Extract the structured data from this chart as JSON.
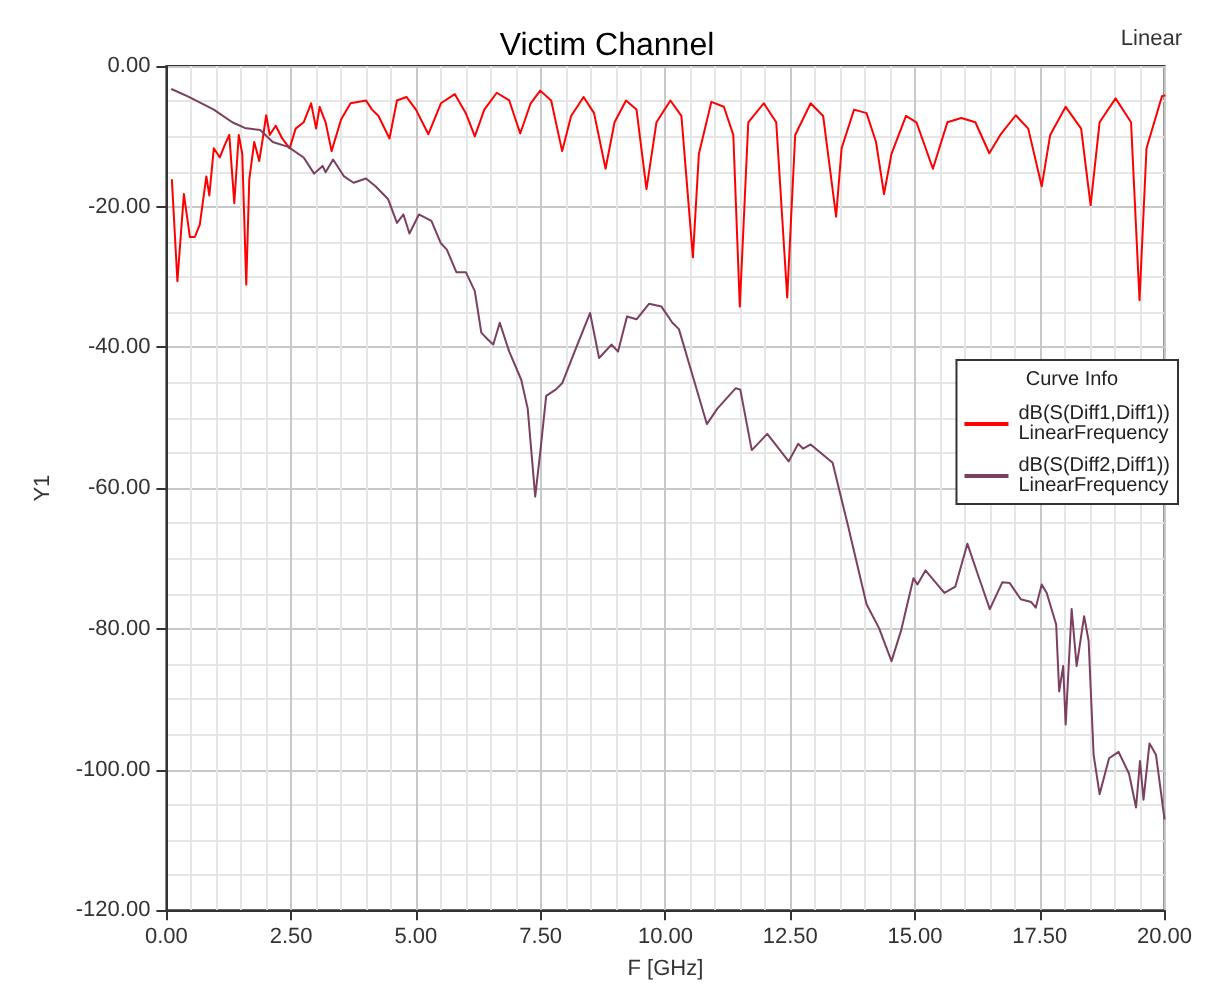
{
  "chart_data": {
    "type": "line",
    "title": "Victim Channel",
    "xlabel": "F [GHz]",
    "ylabel": "Y1",
    "legend_title": "Curve Info",
    "annotations": [
      "Linear"
    ],
    "xlim": [
      0,
      20
    ],
    "ylim": [
      -120,
      0
    ],
    "xticks": [
      {
        "value": 0,
        "label": "0.00"
      },
      {
        "value": 2.5,
        "label": "2.50"
      },
      {
        "value": 5,
        "label": "5.00"
      },
      {
        "value": 7.5,
        "label": "7.50"
      },
      {
        "value": 10,
        "label": "10.00"
      },
      {
        "value": 12.5,
        "label": "12.50"
      },
      {
        "value": 15,
        "label": "15.00"
      },
      {
        "value": 17.5,
        "label": "17.50"
      },
      {
        "value": 20,
        "label": "20.00"
      }
    ],
    "yticks": [
      {
        "value": -120,
        "label": "-120.00"
      },
      {
        "value": -100,
        "label": "-100.00"
      },
      {
        "value": -80,
        "label": "-80.00"
      },
      {
        "value": -60,
        "label": "-60.00"
      },
      {
        "value": -40,
        "label": "-40.00"
      },
      {
        "value": -20,
        "label": "-20.00"
      },
      {
        "value": 0,
        "label": "0.00"
      }
    ],
    "grid": true,
    "legend": "right",
    "marker": "none",
    "line_style": "solid",
    "series": [
      {
        "name": "dB(S(Diff1,Diff1))\nLinearFrequency",
        "color": "#ff0000",
        "x": [
          0.11,
          0.22,
          0.35,
          0.47,
          0.57,
          0.67,
          0.8,
          0.86,
          0.95,
          1.07,
          1.17,
          1.26,
          1.36,
          1.45,
          1.52,
          1.6,
          1.66,
          1.76,
          1.86,
          1.92,
          2.0,
          2.07,
          2.19,
          2.32,
          2.47,
          2.59,
          2.75,
          2.9,
          3.0,
          3.07,
          3.19,
          3.31,
          3.5,
          3.69,
          4.0,
          4.12,
          4.25,
          4.47,
          4.62,
          4.81,
          5.0,
          5.25,
          5.5,
          5.78,
          6.0,
          6.18,
          6.37,
          6.62,
          6.87,
          7.09,
          7.3,
          7.49,
          7.71,
          7.93,
          8.11,
          8.36,
          8.57,
          8.8,
          8.98,
          9.21,
          9.42,
          9.62,
          9.82,
          10.1,
          10.32,
          10.55,
          10.67,
          10.92,
          11.17,
          11.36,
          11.49,
          11.66,
          11.97,
          12.22,
          12.44,
          12.6,
          12.91,
          13.16,
          13.42,
          13.53,
          13.78,
          14.03,
          14.22,
          14.38,
          14.53,
          14.82,
          15.03,
          15.36,
          15.65,
          15.93,
          16.21,
          16.49,
          16.71,
          17.02,
          17.27,
          17.54,
          17.71,
          18.02,
          18.33,
          18.52,
          18.7,
          19.02,
          19.33,
          19.5,
          19.64,
          19.95,
          20.0
        ],
        "values": [
          -16.2,
          -30.6,
          -18.2,
          -24.3,
          -24.3,
          -22.5,
          -15.7,
          -18.4,
          -11.7,
          -13.0,
          -11.2,
          -9.8,
          -19.5,
          -9.8,
          -12.5,
          -31.1,
          -16.2,
          -10.8,
          -13.5,
          -10.8,
          -7.0,
          -9.8,
          -8.5,
          -10.3,
          -11.7,
          -8.9,
          -8.0,
          -5.3,
          -8.9,
          -5.8,
          -8.0,
          -12.1,
          -7.6,
          -5.3,
          -4.9,
          -6.2,
          -7.1,
          -10.3,
          -4.9,
          -4.4,
          -6.2,
          -9.7,
          -5.3,
          -4.0,
          -6.7,
          -10.0,
          -6.2,
          -3.8,
          -4.9,
          -9.6,
          -5.3,
          -3.5,
          -4.9,
          -12.1,
          -7.1,
          -4.4,
          -6.7,
          -14.6,
          -8.0,
          -4.9,
          -6.2,
          -17.5,
          -8.0,
          -4.9,
          -7.1,
          -27.2,
          -12.5,
          -5.1,
          -5.8,
          -9.8,
          -34.2,
          -8.0,
          -5.3,
          -8.0,
          -32.9,
          -9.8,
          -5.3,
          -7.1,
          -21.4,
          -11.7,
          -6.2,
          -6.7,
          -10.8,
          -18.2,
          -12.5,
          -7.1,
          -8.0,
          -14.6,
          -8.0,
          -7.4,
          -8.0,
          -12.4,
          -9.8,
          -7.0,
          -8.9,
          -17.1,
          -9.8,
          -5.8,
          -8.9,
          -19.8,
          -8.0,
          -4.6,
          -8.0,
          -33.3,
          -11.7,
          -4.3,
          -4.2
        ]
      },
      {
        "name": "dB(S(Diff2,Diff1))\nLinearFrequency",
        "color": "#7b3f61",
        "x": [
          0.11,
          0.45,
          0.95,
          1.32,
          1.57,
          1.88,
          2.13,
          2.44,
          2.75,
          2.96,
          3.13,
          3.19,
          3.34,
          3.56,
          3.75,
          4.0,
          4.19,
          4.44,
          4.62,
          4.75,
          4.87,
          5.06,
          5.31,
          5.5,
          5.62,
          5.81,
          6.0,
          6.18,
          6.31,
          6.43,
          6.55,
          6.68,
          6.87,
          7.11,
          7.24,
          7.39,
          7.49,
          7.61,
          7.8,
          7.93,
          8.18,
          8.49,
          8.67,
          8.92,
          9.05,
          9.23,
          9.42,
          9.67,
          9.92,
          10.14,
          10.27,
          10.42,
          10.83,
          11.04,
          11.41,
          11.5,
          11.73,
          12.04,
          12.47,
          12.66,
          12.76,
          12.91,
          13.35,
          13.66,
          14.03,
          14.28,
          14.53,
          14.72,
          14.97,
          15.05,
          15.21,
          15.59,
          15.81,
          16.05,
          16.3,
          16.5,
          16.75,
          16.9,
          17.12,
          17.33,
          17.42,
          17.54,
          17.64,
          17.83,
          17.89,
          17.97,
          18.02,
          18.14,
          18.24,
          18.39,
          18.48,
          18.58,
          18.7,
          18.89,
          19.08,
          19.29,
          19.43,
          19.51,
          19.58,
          19.7,
          19.83,
          20.0
        ],
        "values": [
          -3.3,
          -4.4,
          -6.2,
          -8.0,
          -8.8,
          -9.1,
          -10.8,
          -11.5,
          -13.0,
          -15.3,
          -14.2,
          -15.1,
          -13.3,
          -15.7,
          -16.6,
          -16.0,
          -17.1,
          -18.9,
          -22.3,
          -21.1,
          -23.8,
          -21.1,
          -22.0,
          -25.2,
          -26.1,
          -29.3,
          -29.3,
          -32.0,
          -37.9,
          -38.8,
          -39.6,
          -36.5,
          -40.6,
          -44.6,
          -48.7,
          -61.2,
          -55.0,
          -46.9,
          -46.0,
          -45.1,
          -40.6,
          -35.1,
          -41.5,
          -39.6,
          -40.6,
          -35.6,
          -36.0,
          -33.8,
          -34.2,
          -36.5,
          -37.4,
          -41.0,
          -50.9,
          -48.7,
          -45.8,
          -46.0,
          -54.6,
          -52.3,
          -56.2,
          -53.7,
          -54.4,
          -53.8,
          -56.4,
          -65.4,
          -76.5,
          -79.9,
          -84.6,
          -80.3,
          -72.8,
          -73.7,
          -71.7,
          -74.9,
          -74.0,
          -67.9,
          -73.1,
          -77.2,
          -73.4,
          -73.5,
          -75.8,
          -76.2,
          -77.0,
          -73.7,
          -74.9,
          -79.4,
          -88.9,
          -85.3,
          -93.6,
          -77.2,
          -85.3,
          -78.2,
          -81.7,
          -97.9,
          -103.5,
          -98.4,
          -97.5,
          -100.6,
          -105.4,
          -98.8,
          -104.3,
          -96.3,
          -97.9,
          -107.0
        ]
      }
    ]
  }
}
